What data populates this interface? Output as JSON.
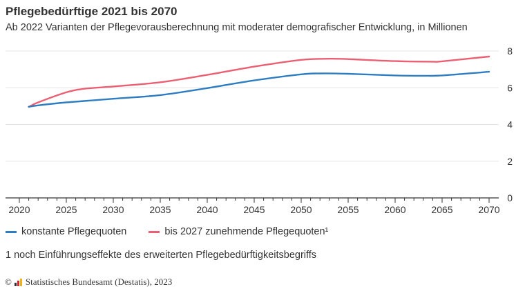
{
  "header": {
    "title": "Pflegebedürftige 2021 bis 2070",
    "subtitle": "Ab 2022 Varianten der Pflegevorausberechnung mit moderater demografischer Entwicklung, in Millionen"
  },
  "colors": {
    "series_blue": "#2e7dc1",
    "series_red": "#eb5f73",
    "grid": "#e5e5e5",
    "axis": "#333333"
  },
  "chart_data": {
    "type": "line",
    "title": "Pflegebedürftige 2021 bis 2070",
    "xlabel": "",
    "ylabel": "",
    "xlim": [
      2020,
      2070
    ],
    "ylim": [
      0,
      8
    ],
    "x_ticks": [
      2020,
      2025,
      2030,
      2035,
      2040,
      2045,
      2050,
      2055,
      2060,
      2065,
      2070
    ],
    "y_ticks": [
      0,
      2,
      4,
      6,
      8
    ],
    "y_axis_side": "right",
    "grid": true,
    "legend_position": "bottom-left",
    "series": [
      {
        "name": "konstante Pflegequoten",
        "color": "#2e7dc1",
        "x": [
          2021,
          2022,
          2025,
          2030,
          2035,
          2040,
          2045,
          2050,
          2052,
          2055,
          2060,
          2063,
          2065,
          2070
        ],
        "y": [
          4.96,
          5.04,
          5.2,
          5.4,
          5.6,
          5.98,
          6.4,
          6.73,
          6.78,
          6.76,
          6.67,
          6.65,
          6.67,
          6.87
        ]
      },
      {
        "name": "bis 2027 zunehmende Pflegequoten¹",
        "color": "#eb5f73",
        "x": [
          2021,
          2022,
          2025,
          2027,
          2030,
          2035,
          2040,
          2045,
          2050,
          2053,
          2055,
          2060,
          2064,
          2065,
          2070
        ],
        "y": [
          4.96,
          5.2,
          5.75,
          5.95,
          6.07,
          6.3,
          6.7,
          7.15,
          7.52,
          7.58,
          7.56,
          7.45,
          7.42,
          7.44,
          7.7
        ]
      }
    ]
  },
  "legend": {
    "items": [
      {
        "label": "konstante Pflegequoten",
        "color": "#2e7dc1"
      },
      {
        "label": "bis 2027 zunehmende Pflegequoten¹",
        "color": "#eb5f73"
      }
    ]
  },
  "footnote": "1 noch Einführungseffekte des erweiterten Pflegebedürftigkeitsbegriffs",
  "source": {
    "copyright": "©",
    "text": "Statistisches Bundesamt (Destatis), 2023",
    "logo_colors": [
      "#333333",
      "#d8242f",
      "#f2b20f"
    ]
  }
}
